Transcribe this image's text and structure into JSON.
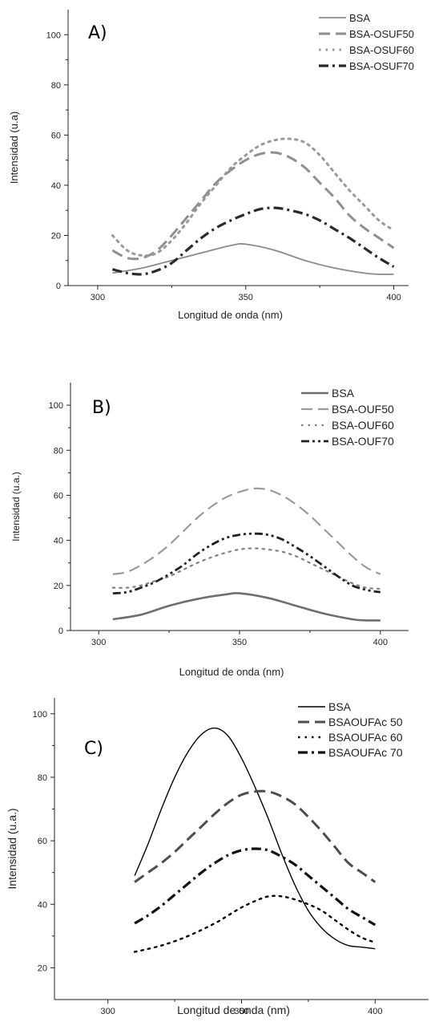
{
  "chart_data": [
    {
      "type": "line",
      "panel_label": "A)",
      "xlabel": "Longitud de onda (nm)",
      "ylabel": "Intensidad (u.a)",
      "xlim": [
        290,
        405
      ],
      "ylim": [
        0,
        110
      ],
      "xticks": [
        300,
        350,
        400
      ],
      "yticks": [
        0,
        20,
        40,
        60,
        80,
        100
      ],
      "legend_position": "top-right",
      "series": [
        {
          "name": "BSA",
          "color": "#8a8a8a",
          "dash": "solid",
          "x": [
            305,
            315,
            325,
            335,
            345,
            350,
            360,
            370,
            380,
            390,
            395,
            400
          ],
          "y": [
            5,
            7,
            10,
            13,
            16,
            16.5,
            14,
            10,
            7,
            5,
            4.5,
            4.5
          ]
        },
        {
          "name": "BSA-OSUF50",
          "color": "#8f8f8f",
          "dash": "dash",
          "x": [
            305,
            310,
            315,
            320,
            325,
            330,
            335,
            340,
            345,
            350,
            355,
            360,
            365,
            370,
            375,
            380,
            385,
            390,
            395,
            400
          ],
          "y": [
            14,
            11,
            11,
            14,
            20,
            27,
            34,
            41,
            46,
            50,
            52.5,
            53,
            51,
            47,
            41,
            35,
            28,
            23,
            19,
            15
          ]
        },
        {
          "name": "BSA-OSUF60",
          "color": "#999999",
          "dash": "dot",
          "x": [
            305,
            310,
            315,
            320,
            325,
            330,
            335,
            340,
            345,
            350,
            355,
            360,
            365,
            370,
            375,
            380,
            385,
            390,
            395,
            400
          ],
          "y": [
            20,
            14,
            12,
            13,
            18,
            25,
            33,
            40,
            47,
            52,
            56,
            58,
            58.5,
            57,
            52,
            45,
            38,
            32,
            26,
            22
          ]
        },
        {
          "name": "BSA-OSUF70",
          "color": "#2a2a2a",
          "dash": "dashdot",
          "x": [
            305,
            310,
            315,
            320,
            325,
            330,
            335,
            340,
            345,
            350,
            355,
            360,
            365,
            370,
            375,
            380,
            385,
            390,
            395,
            400
          ],
          "y": [
            6.5,
            5,
            4.5,
            6,
            9,
            14,
            19,
            23,
            26,
            28.5,
            30.5,
            31,
            30,
            28.5,
            26,
            22.5,
            19,
            15,
            11,
            7.5
          ]
        }
      ]
    },
    {
      "type": "line",
      "panel_label": "B)",
      "xlabel": "Longitud de onda (nm)",
      "ylabel": "Intensidad (u.a.)",
      "xlim": [
        290,
        410
      ],
      "ylim": [
        0,
        110
      ],
      "xticks": [
        300,
        350,
        400
      ],
      "yticks": [
        0,
        20,
        40,
        60,
        80,
        100
      ],
      "legend_position": "top-right",
      "series": [
        {
          "name": "BSA",
          "color": "#6e6e6e",
          "dash": "solid",
          "x": [
            305,
            315,
            325,
            335,
            345,
            350,
            360,
            370,
            380,
            390,
            395,
            400
          ],
          "y": [
            5,
            7,
            11,
            14,
            16,
            16.5,
            14.5,
            11,
            7.5,
            5,
            4.5,
            4.5
          ]
        },
        {
          "name": "BSA-OUF50",
          "color": "#9a9a9a",
          "dash": "dash",
          "x": [
            305,
            310,
            315,
            320,
            325,
            330,
            335,
            340,
            345,
            350,
            355,
            360,
            365,
            370,
            375,
            380,
            385,
            390,
            395,
            400
          ],
          "y": [
            25,
            26,
            29,
            33,
            38,
            44,
            50,
            55,
            59,
            61.5,
            63,
            62.5,
            60,
            56,
            51,
            45,
            39,
            33,
            28,
            25
          ]
        },
        {
          "name": "BSA-OUF60",
          "color": "#808080",
          "dash": "dot",
          "x": [
            305,
            310,
            315,
            320,
            325,
            330,
            335,
            340,
            345,
            350,
            355,
            360,
            365,
            370,
            375,
            380,
            385,
            390,
            395,
            400
          ],
          "y": [
            19,
            19,
            20,
            22,
            24,
            27,
            30,
            32.5,
            34.5,
            36,
            36.5,
            36,
            35,
            33,
            30,
            27,
            24,
            21,
            19,
            18.5
          ]
        },
        {
          "name": "BSA-OUF70",
          "color": "#222222",
          "dash": "dashdotdot",
          "x": [
            305,
            310,
            315,
            320,
            325,
            330,
            335,
            340,
            345,
            350,
            355,
            360,
            365,
            370,
            375,
            380,
            385,
            390,
            395,
            400
          ],
          "y": [
            16.5,
            17,
            19,
            21.5,
            25,
            29,
            34,
            38,
            41,
            42.5,
            43,
            42.5,
            40.5,
            37,
            33,
            28.5,
            24,
            20,
            18,
            17
          ]
        }
      ]
    },
    {
      "type": "line",
      "panel_label": "C)",
      "xlabel": "Longitud de onda (nm)",
      "ylabel": "Intensidad (u.a.)",
      "xlim": [
        280,
        420
      ],
      "ylim": [
        10,
        105
      ],
      "xticks": [
        300,
        350,
        400
      ],
      "yticks": [
        20,
        40,
        60,
        80,
        100
      ],
      "legend_position": "top-right",
      "series": [
        {
          "name": "BSA",
          "color": "#000000",
          "dash": "solid",
          "x": [
            310,
            315,
            320,
            325,
            330,
            335,
            340,
            345,
            350,
            355,
            360,
            365,
            370,
            375,
            380,
            385,
            390,
            395,
            400
          ],
          "y": [
            49,
            59,
            70,
            80,
            88,
            93.5,
            95.5,
            93,
            86,
            77,
            67,
            56,
            46,
            38,
            32.5,
            29,
            27,
            26.5,
            26
          ]
        },
        {
          "name": "BSAOUFAc 50",
          "color": "#4d4d4d",
          "dash": "dash",
          "x": [
            310,
            315,
            320,
            325,
            330,
            335,
            340,
            345,
            350,
            355,
            360,
            365,
            370,
            375,
            380,
            385,
            390,
            395,
            400
          ],
          "y": [
            47,
            50,
            53,
            56.5,
            60.5,
            64.5,
            68.5,
            72,
            74.5,
            75.5,
            75.5,
            74,
            71.5,
            67.5,
            63,
            58,
            53,
            50,
            47
          ]
        },
        {
          "name": "BSAOUFAc 60",
          "color": "#000000",
          "dash": "dot",
          "x": [
            310,
            320,
            330,
            340,
            345,
            350,
            355,
            360,
            365,
            370,
            375,
            380,
            385,
            390,
            395,
            400
          ],
          "y": [
            25,
            27,
            30,
            34,
            36.5,
            39,
            41,
            42.5,
            42.5,
            41.5,
            40,
            38,
            35,
            32,
            29.5,
            28
          ]
        },
        {
          "name": "BSAOUFAc 70",
          "color": "#111111",
          "dash": "dashdot",
          "x": [
            310,
            315,
            320,
            325,
            330,
            335,
            340,
            345,
            350,
            355,
            360,
            365,
            370,
            375,
            380,
            385,
            390,
            395,
            400
          ],
          "y": [
            34,
            36.5,
            39.5,
            43,
            46.5,
            50,
            53,
            55.5,
            57,
            57.5,
            57,
            55,
            52.5,
            49,
            45.5,
            42,
            38.5,
            36,
            33.5
          ]
        }
      ]
    }
  ]
}
